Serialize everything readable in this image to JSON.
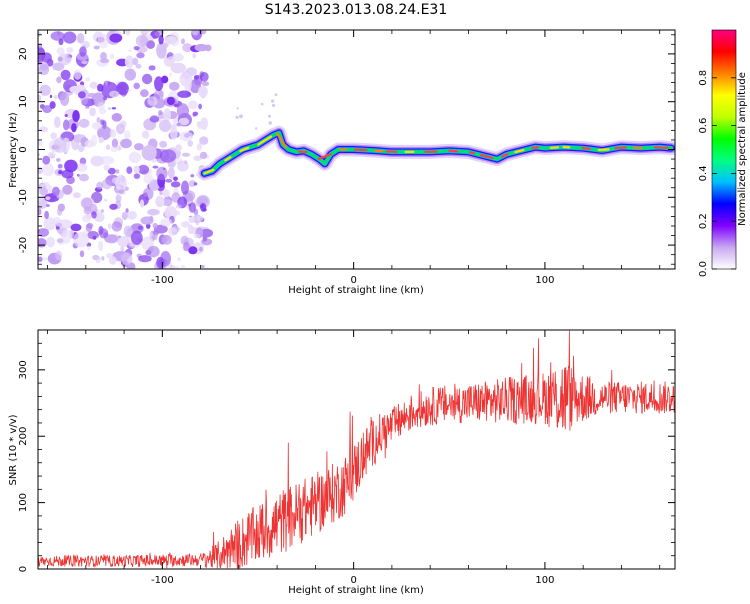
{
  "figure_title": "S143.2023.013.08.24.E31",
  "chart_data": [
    {
      "type": "heatmap",
      "title": "",
      "xlabel": "Height of straight line (km)",
      "ylabel": "Frequency (Hz)",
      "xlim": [
        -165,
        168
      ],
      "ylim": [
        -25,
        25
      ],
      "x_ticks": [
        -100,
        0,
        100
      ],
      "y_ticks": [
        20,
        10,
        0,
        -10,
        -20
      ],
      "noise_region_x": [
        -165,
        -76
      ],
      "ridge": {
        "x": [
          -78,
          -74,
          -70,
          -66,
          -62,
          -58,
          -54,
          -50,
          -46,
          -42,
          -39,
          -37,
          -34,
          -30,
          -26,
          -22,
          -18,
          -15,
          -12,
          -8,
          -4,
          0,
          10,
          20,
          30,
          40,
          50,
          60,
          70,
          75,
          80,
          85,
          90,
          95,
          100,
          110,
          120,
          130,
          140,
          150,
          160,
          166
        ],
        "y": [
          -5,
          -4.5,
          -3,
          -2,
          -1,
          0,
          0.5,
          1,
          2,
          3,
          3.5,
          1,
          0,
          -0.5,
          -0.3,
          -1,
          -2,
          -3,
          -1,
          0,
          0,
          0,
          -0.2,
          -0.5,
          -0.5,
          -0.5,
          -0.3,
          -0.5,
          -1.5,
          -2,
          -1,
          -0.5,
          0,
          0.5,
          0.3,
          0.5,
          0.3,
          -0.2,
          0.5,
          0.3,
          0.5,
          0.3
        ]
      },
      "colorbar": {
        "label": "Normalized spectral amplitude",
        "ticks": [
          0.0,
          0.2,
          0.4,
          0.6,
          0.8
        ],
        "range": [
          0,
          1
        ],
        "colors": [
          "#ffffff",
          "#c8a8f0",
          "#8000ff",
          "#0000ff",
          "#00c0ff",
          "#00ff80",
          "#00ff00",
          "#c0ff00",
          "#ffff00",
          "#ff8000",
          "#ff0000",
          "#ff0080"
        ]
      }
    },
    {
      "type": "line",
      "title": "",
      "xlabel": "Height of straight line (km)",
      "ylabel": "SNR (10 * v/v)",
      "xlim": [
        -165,
        168
      ],
      "ylim": [
        0,
        360
      ],
      "x_ticks": [
        -100,
        0,
        100
      ],
      "y_ticks": [
        0,
        100,
        200,
        300
      ],
      "color": "#ee3333",
      "trend": {
        "x": [
          -165,
          -120,
          -80,
          -72,
          -65,
          -55,
          -45,
          -35,
          -25,
          -15,
          -5,
          0,
          5,
          10,
          15,
          20,
          30,
          40,
          50,
          60,
          70,
          80,
          90,
          100,
          110,
          120,
          130,
          140,
          150,
          160,
          168
        ],
        "y": [
          12,
          12,
          14,
          18,
          30,
          45,
          60,
          75,
          90,
          105,
          125,
          145,
          170,
          190,
          205,
          215,
          235,
          245,
          248,
          250,
          252,
          254,
          256,
          258,
          258,
          258,
          258,
          258,
          258,
          258,
          258
        ]
      },
      "noise_amplitude": {
        "x": [
          -165,
          -80,
          -72,
          -60,
          -40,
          0,
          20,
          60,
          100,
          110,
          115,
          130,
          168
        ],
        "a": [
          8,
          10,
          20,
          40,
          50,
          45,
          28,
          30,
          40,
          65,
          45,
          25,
          25
        ]
      }
    }
  ]
}
